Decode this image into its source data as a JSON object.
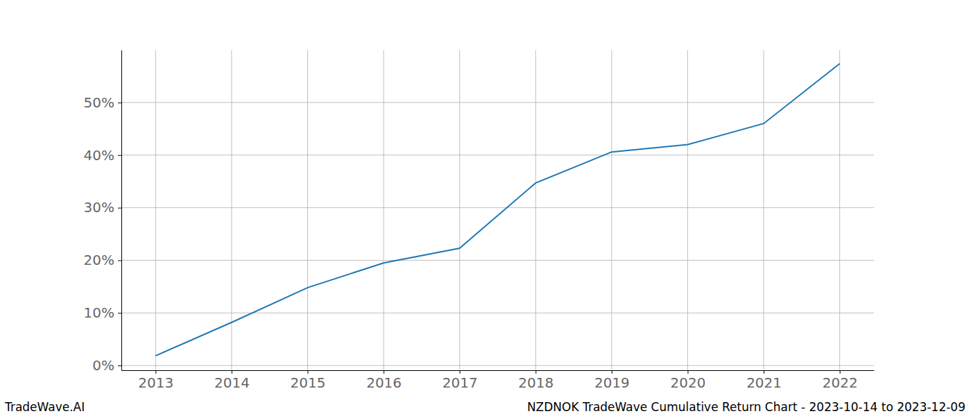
{
  "chart_data": {
    "type": "line",
    "title": "NZDNOK TradeWave Cumulative Return Chart - 2023-10-14 to 2023-12-09",
    "annotations": [
      "TradeWave.AI"
    ],
    "x": [
      2013,
      2014,
      2015,
      2016,
      2017,
      2018,
      2019,
      2020,
      2021,
      2022
    ],
    "values": [
      1.85,
      8.2,
      14.8,
      19.5,
      22.3,
      34.7,
      40.6,
      42.0,
      46.0,
      57.4
    ],
    "color": "#1f77b4",
    "xlim": [
      2012.55,
      2022.45
    ],
    "xticks": [
      2013,
      2014,
      2015,
      2016,
      2017,
      2018,
      2019,
      2020,
      2021,
      2022
    ],
    "ylim": [
      -0.9,
      60.0
    ],
    "yticks": [
      {
        "value": 0,
        "label": "0%"
      },
      {
        "value": 10,
        "label": "10%"
      },
      {
        "value": 20,
        "label": "20%"
      },
      {
        "value": 30,
        "label": "30%"
      },
      {
        "value": 40,
        "label": "40%"
      },
      {
        "value": 50,
        "label": "50%"
      }
    ],
    "grid": true
  }
}
